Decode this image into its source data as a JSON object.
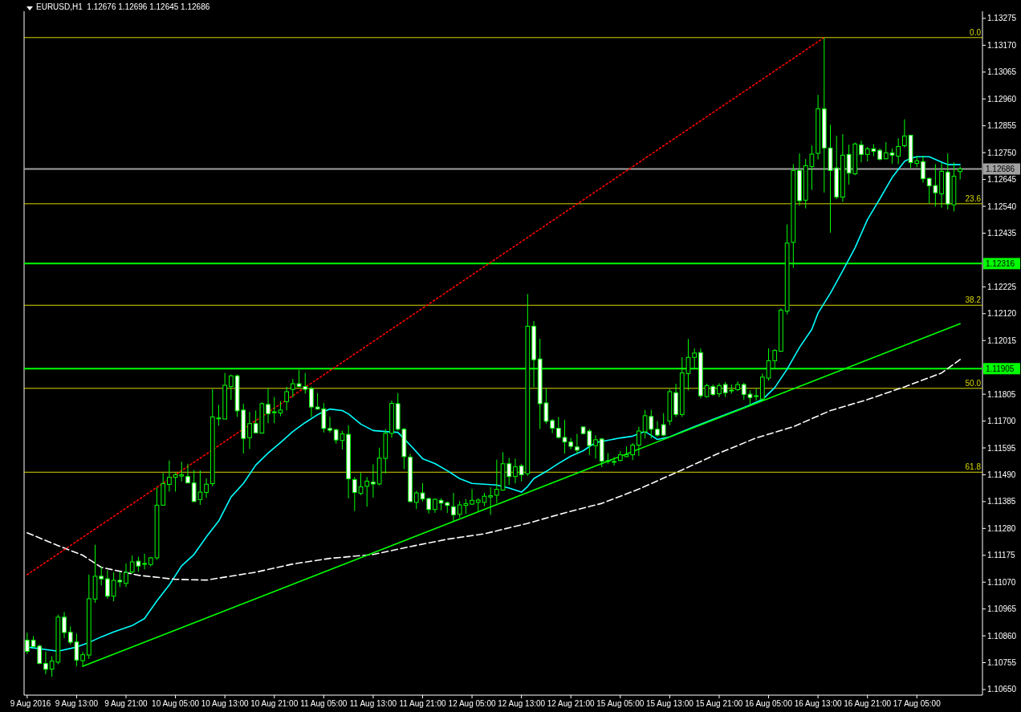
{
  "chart_data": {
    "type": "candlestick",
    "title": "EURUSD,H1  1.12676 1.12696 1.12645 1.12686",
    "color": "#00ff00",
    "categories": [
      "9 Aug 2016",
      null,
      null,
      null,
      null,
      null,
      null,
      null,
      "9 Aug 13:00",
      null,
      null,
      null,
      null,
      null,
      null,
      null,
      "9 Aug 21:00",
      null,
      null,
      null,
      null,
      null,
      null,
      null,
      "10 Aug 05:00",
      null,
      null,
      null,
      null,
      null,
      null,
      null,
      "10 Aug 13:00",
      null,
      null,
      null,
      null,
      null,
      null,
      null,
      "10 Aug 21:00",
      null,
      null,
      null,
      null,
      null,
      null,
      null,
      "11 Aug 05:00",
      null,
      null,
      null,
      null,
      null,
      null,
      null,
      "11 Aug 13:00",
      null,
      null,
      null,
      null,
      null,
      null,
      null,
      "11 Aug 21:00",
      null,
      null,
      null,
      null,
      null,
      null,
      null,
      "12 Aug 05:00",
      null,
      null,
      null,
      null,
      null,
      null,
      null,
      "12 Aug 13:00",
      null,
      null,
      null,
      null,
      null,
      null,
      null,
      "12 Aug 21:00",
      null,
      null,
      null,
      null,
      null,
      null,
      null,
      "15 Aug 05:00",
      null,
      null,
      null,
      null,
      null,
      null,
      null,
      "15 Aug 13:00",
      null,
      null,
      null,
      null,
      null,
      null,
      null,
      "15 Aug 21:00",
      null,
      null,
      null,
      null,
      null,
      null,
      null,
      "16 Aug 05:00",
      null,
      null,
      null,
      null,
      null,
      null,
      null,
      "16 Aug 13:00",
      null,
      null,
      null,
      null,
      null,
      null,
      null,
      "16 Aug 21:00",
      null,
      null,
      null,
      null,
      null,
      null,
      null,
      "17 Aug 05:00",
      null,
      null,
      null,
      null,
      null,
      null,
      null
    ],
    "ohlc": [
      [
        1.10843,
        1.10872,
        1.10789,
        1.10799
      ],
      [
        1.10843,
        1.10859,
        1.10815,
        1.10818
      ],
      [
        1.1082,
        1.10825,
        1.10749,
        1.10752
      ],
      [
        1.10752,
        1.10799,
        1.1071,
        1.10729
      ],
      [
        1.1073,
        1.1078,
        1.107,
        1.10761
      ],
      [
        1.10757,
        1.10943,
        1.10749,
        1.10933
      ],
      [
        1.10933,
        1.10953,
        1.10851,
        1.10873
      ],
      [
        1.10874,
        1.10897,
        1.10825,
        1.10835
      ],
      [
        1.10836,
        1.10869,
        1.10742,
        1.10765
      ],
      [
        1.10763,
        1.10797,
        1.10739,
        1.10786
      ],
      [
        1.10785,
        1.11099,
        1.1077,
        1.11005
      ],
      [
        1.11004,
        1.11216,
        1.10989,
        1.11093
      ],
      [
        1.11093,
        1.1113,
        1.11057,
        1.11083
      ],
      [
        1.11083,
        1.11117,
        1.11005,
        1.11015
      ],
      [
        1.11015,
        1.11109,
        1.10995,
        1.11077
      ],
      [
        1.11077,
        1.11111,
        1.11051,
        1.11071
      ],
      [
        1.11065,
        1.11143,
        1.11051,
        1.11108
      ],
      [
        1.1111,
        1.11174,
        1.11103,
        1.11149
      ],
      [
        1.11152,
        1.11169,
        1.11111,
        1.11133
      ],
      [
        1.1114,
        1.11181,
        1.1112,
        1.11143
      ],
      [
        1.11139,
        1.11169,
        1.11132,
        1.11165
      ],
      [
        1.11165,
        1.1144,
        1.11158,
        1.11371
      ],
      [
        1.11371,
        1.11497,
        1.1137,
        1.11455
      ],
      [
        1.11452,
        1.11546,
        1.11424,
        1.1148
      ],
      [
        1.1148,
        1.11497,
        1.11424,
        1.1149
      ],
      [
        1.11485,
        1.11541,
        1.11464,
        1.1149
      ],
      [
        1.11483,
        1.11533,
        1.11457,
        1.11458
      ],
      [
        1.11458,
        1.11509,
        1.11385,
        1.11385
      ],
      [
        1.11393,
        1.11507,
        1.11372,
        1.11422
      ],
      [
        1.11421,
        1.11476,
        1.114,
        1.11453
      ],
      [
        1.11455,
        1.11825,
        1.11445,
        1.11716
      ],
      [
        1.1171,
        1.11763,
        1.11682,
        1.11712
      ],
      [
        1.11708,
        1.11888,
        1.11707,
        1.1184
      ],
      [
        1.11835,
        1.11882,
        1.11783,
        1.11877
      ],
      [
        1.11877,
        1.11882,
        1.11716,
        1.1174
      ],
      [
        1.11743,
        1.11768,
        1.11573,
        1.11632
      ],
      [
        1.11635,
        1.11736,
        1.11591,
        1.1169
      ],
      [
        1.1169,
        1.11741,
        1.11651,
        1.11654
      ],
      [
        1.11653,
        1.11773,
        1.11651,
        1.11768
      ],
      [
        1.11765,
        1.11827,
        1.11692,
        1.11729
      ],
      [
        1.11736,
        1.11794,
        1.11692,
        1.11734
      ],
      [
        1.11732,
        1.11778,
        1.11719,
        1.11743
      ],
      [
        1.11776,
        1.11834,
        1.11742,
        1.11815
      ],
      [
        1.11824,
        1.11865,
        1.11792,
        1.11846
      ],
      [
        1.11846,
        1.119,
        1.11832,
        1.11835
      ],
      [
        1.11835,
        1.11888,
        1.11807,
        1.11824
      ],
      [
        1.11827,
        1.11835,
        1.11716,
        1.11755
      ],
      [
        1.11755,
        1.11809,
        1.11744,
        1.11747
      ],
      [
        1.11748,
        1.1177,
        1.11655,
        1.11671
      ],
      [
        1.11671,
        1.11716,
        1.11654,
        1.11664
      ],
      [
        1.11666,
        1.11671,
        1.11612,
        1.11626
      ],
      [
        1.11624,
        1.11662,
        1.11589,
        1.1165
      ],
      [
        1.11648,
        1.11684,
        1.11398,
        1.11474
      ],
      [
        1.11471,
        1.11481,
        1.11348,
        1.11421
      ],
      [
        1.11417,
        1.11497,
        1.1141,
        1.11443
      ],
      [
        1.11445,
        1.11481,
        1.11365,
        1.11465
      ],
      [
        1.11461,
        1.11531,
        1.11401,
        1.11454
      ],
      [
        1.11454,
        1.11596,
        1.11448,
        1.11555
      ],
      [
        1.11554,
        1.11669,
        1.11495,
        1.11652
      ],
      [
        1.11652,
        1.1178,
        1.11635,
        1.11769
      ],
      [
        1.11768,
        1.11809,
        1.11663,
        1.11668
      ],
      [
        1.11668,
        1.11673,
        1.11512,
        1.11561
      ],
      [
        1.11559,
        1.11572,
        1.11382,
        1.11385
      ],
      [
        1.11382,
        1.11427,
        1.11356,
        1.11419
      ],
      [
        1.11419,
        1.11457,
        1.11385,
        1.11395
      ],
      [
        1.11397,
        1.114,
        1.11338,
        1.11354
      ],
      [
        1.11354,
        1.11398,
        1.11341,
        1.11394
      ],
      [
        1.1139,
        1.11398,
        1.11351,
        1.11379
      ],
      [
        1.11381,
        1.11385,
        1.11341,
        1.1137
      ],
      [
        1.11365,
        1.11419,
        1.11306,
        1.11333
      ],
      [
        1.11335,
        1.11387,
        1.11322,
        1.11372
      ],
      [
        1.1137,
        1.11395,
        1.11337,
        1.11377
      ],
      [
        1.11375,
        1.11434,
        1.11372,
        1.1139
      ],
      [
        1.11382,
        1.11398,
        1.11346,
        1.11391
      ],
      [
        1.11382,
        1.11419,
        1.11367,
        1.11406
      ],
      [
        1.11403,
        1.11441,
        1.11333,
        1.11408
      ],
      [
        1.1141,
        1.11549,
        1.11379,
        1.11433
      ],
      [
        1.1143,
        1.11578,
        1.11429,
        1.11533
      ],
      [
        1.11533,
        1.11556,
        1.1145,
        1.11483
      ],
      [
        1.11483,
        1.11553,
        1.11457,
        1.11521
      ],
      [
        1.11525,
        1.11533,
        1.11464,
        1.1149
      ],
      [
        1.11494,
        1.12197,
        1.11486,
        1.12071
      ],
      [
        1.12071,
        1.12091,
        1.11832,
        1.1194
      ],
      [
        1.11943,
        1.12022,
        1.11669,
        1.11768
      ],
      [
        1.11771,
        1.11828,
        1.1169,
        1.11699
      ],
      [
        1.11702,
        1.11708,
        1.11653,
        1.11672
      ],
      [
        1.11672,
        1.11716,
        1.11632,
        1.11636
      ],
      [
        1.11636,
        1.11705,
        1.11573,
        1.11618
      ],
      [
        1.11618,
        1.11634,
        1.11589,
        1.11601
      ],
      [
        1.11599,
        1.1165,
        1.11573,
        1.11586
      ],
      [
        1.11677,
        1.11678,
        1.11648,
        1.11651
      ],
      [
        1.11661,
        1.11669,
        1.11567,
        1.11604
      ],
      [
        1.11604,
        1.11645,
        1.11553,
        1.11627
      ],
      [
        1.1163,
        1.11634,
        1.1152,
        1.11543
      ],
      [
        1.11543,
        1.11575,
        1.11533,
        1.11545
      ],
      [
        1.11539,
        1.11559,
        1.11526,
        1.11542
      ],
      [
        1.11546,
        1.11582,
        1.11542,
        1.11568
      ],
      [
        1.11561,
        1.11601,
        1.11559,
        1.11568
      ],
      [
        1.11568,
        1.11614,
        1.11547,
        1.11606
      ],
      [
        1.11606,
        1.11678,
        1.11563,
        1.11661
      ],
      [
        1.11658,
        1.11744,
        1.11632,
        1.11721
      ],
      [
        1.11718,
        1.11744,
        1.11632,
        1.11668
      ],
      [
        1.11668,
        1.117,
        1.11638,
        1.11645
      ],
      [
        1.11686,
        1.11731,
        1.1164,
        1.11645
      ],
      [
        1.117,
        1.11825,
        1.11684,
        1.11815
      ],
      [
        1.11811,
        1.11846,
        1.11716,
        1.11726
      ],
      [
        1.11726,
        1.1195,
        1.11716,
        1.11888
      ],
      [
        1.11886,
        1.12021,
        1.1182,
        1.11949
      ],
      [
        1.11949,
        1.11984,
        1.11903,
        1.11966
      ],
      [
        1.11968,
        1.11984,
        1.11789,
        1.11799
      ],
      [
        1.11796,
        1.11846,
        1.11791,
        1.11839
      ],
      [
        1.11835,
        1.11843,
        1.11799,
        1.11804
      ],
      [
        1.11807,
        1.11848,
        1.11794,
        1.11839
      ],
      [
        1.11843,
        1.11853,
        1.11794,
        1.11811
      ],
      [
        1.11821,
        1.11843,
        1.11807,
        1.11819
      ],
      [
        1.11823,
        1.11855,
        1.11818,
        1.11843
      ],
      [
        1.11843,
        1.11849,
        1.11783,
        1.11804
      ],
      [
        1.11805,
        1.1182,
        1.11762,
        1.11792
      ],
      [
        1.11797,
        1.11827,
        1.1178,
        1.11799
      ],
      [
        1.11786,
        1.11886,
        1.1178,
        1.11872
      ],
      [
        1.11868,
        1.11984,
        1.11858,
        1.11936
      ],
      [
        1.11936,
        1.11981,
        1.11903,
        1.11976
      ],
      [
        1.11973,
        1.12141,
        1.11971,
        1.12134
      ],
      [
        1.1213,
        1.12469,
        1.12117,
        1.12396
      ],
      [
        1.12399,
        1.12705,
        1.12299,
        1.1268
      ],
      [
        1.1268,
        1.12747,
        1.12542,
        1.12562
      ],
      [
        1.12564,
        1.12725,
        1.12532,
        1.12699
      ],
      [
        1.12696,
        1.12778,
        1.12604,
        1.12744
      ],
      [
        1.12747,
        1.12976,
        1.12723,
        1.12921
      ],
      [
        1.12921,
        1.132,
        1.12594,
        1.12768
      ],
      [
        1.12768,
        1.12859,
        1.12437,
        1.1268
      ],
      [
        1.1269,
        1.12816,
        1.12568,
        1.12576
      ],
      [
        1.12576,
        1.12822,
        1.12557,
        1.1274
      ],
      [
        1.12743,
        1.12781,
        1.12625,
        1.1267
      ],
      [
        1.12667,
        1.12789,
        1.12662,
        1.12784
      ],
      [
        1.1278,
        1.12797,
        1.12712,
        1.12743
      ],
      [
        1.12743,
        1.12772,
        1.12716,
        1.12765
      ],
      [
        1.12765,
        1.12783,
        1.12736,
        1.12755
      ],
      [
        1.12759,
        1.12766,
        1.12719,
        1.12724
      ],
      [
        1.12726,
        1.12791,
        1.12724,
        1.12749
      ],
      [
        1.12749,
        1.12766,
        1.12707,
        1.1274
      ],
      [
        1.12736,
        1.12806,
        1.12705,
        1.12774
      ],
      [
        1.12777,
        1.1288,
        1.1277,
        1.12815
      ],
      [
        1.12818,
        1.1282,
        1.1269,
        1.12711
      ],
      [
        1.12708,
        1.12738,
        1.12693,
        1.12718
      ],
      [
        1.12715,
        1.12738,
        1.12632,
        1.12648
      ],
      [
        1.12649,
        1.12653,
        1.12552,
        1.1262
      ],
      [
        1.12621,
        1.12705,
        1.12539,
        1.12593
      ],
      [
        1.12589,
        1.1271,
        1.12535,
        1.12677
      ],
      [
        1.12674,
        1.12747,
        1.12528,
        1.12549
      ],
      [
        1.12546,
        1.12712,
        1.1252,
        1.12658
      ],
      [
        1.12676,
        1.12696,
        1.12645,
        1.12686
      ]
    ],
    "series": [
      {
        "type": "line",
        "color": "#00ffff",
        "line_style": "solid",
        "values": [
          1.10816,
          null,
          null,
          null,
          null,
          1.108,
          null,
          null,
          1.10816,
          null,
          1.10834,
          null,
          1.10856,
          null,
          1.10875,
          null,
          null,
          1.109,
          null,
          1.10928,
          null,
          1.10997,
          null,
          1.11059,
          null,
          1.11134,
          null,
          1.11178,
          null,
          1.11247,
          null,
          1.11309,
          null,
          1.11403,
          null,
          1.11456,
          null,
          1.11528,
          null,
          1.11575,
          null,
          1.11616,
          null,
          1.11659,
          null,
          1.11694,
          null,
          1.11725,
          null,
          1.11747,
          null,
          1.11741,
          1.11728,
          null,
          1.11688,
          null,
          1.11663,
          null,
          1.11659,
          null,
          1.11656,
          null,
          1.11606,
          null,
          1.11553,
          null,
          1.11534,
          null,
          1.11506,
          null,
          1.11475,
          null,
          1.11456,
          null,
          1.11453,
          null,
          1.1145,
          null,
          1.11438,
          null,
          1.11422,
          1.11444,
          1.11475,
          null,
          1.11503,
          null,
          1.11534,
          null,
          1.11563,
          null,
          1.11584,
          null,
          1.11616,
          null,
          1.11625,
          null,
          1.11634,
          null,
          1.11641,
          null,
          1.11659,
          1.11644,
          1.11628,
          null,
          1.11638,
          null,
          1.11659,
          null,
          1.11678,
          null,
          1.11697,
          null,
          1.11716,
          null,
          null,
          null,
          1.11753,
          null,
          null,
          1.11784,
          null,
          1.11831,
          null,
          1.11903,
          null,
          1.11988,
          null,
          1.12059,
          1.12122,
          null,
          1.122,
          null,
          1.12288,
          null,
          1.12378,
          null,
          1.12488,
          null,
          1.12569,
          null,
          1.12653,
          null,
          1.12716,
          1.12728,
          1.12734,
          null,
          1.12734,
          null,
          1.12713,
          1.12703,
          null,
          1.12703
        ]
      },
      {
        "type": "line",
        "color": "#ffffff",
        "line_style": "dashed",
        "values": [
          1.11263,
          null,
          null,
          null,
          null,
          1.11213,
          null,
          null,
          null,
          1.11175,
          null,
          null,
          1.11128,
          null,
          null,
          null,
          null,
          null,
          1.11097,
          null,
          null,
          null,
          null,
          null,
          1.11081,
          null,
          null,
          null,
          null,
          1.11078,
          null,
          null,
          null,
          null,
          null,
          null,
          null,
          1.11109,
          null,
          null,
          null,
          null,
          null,
          1.11141,
          null,
          null,
          null,
          null,
          null,
          1.11163,
          null,
          null,
          null,
          null,
          null,
          null,
          1.11178,
          null,
          null,
          null,
          null,
          null,
          1.11209,
          null,
          null,
          null,
          null,
          null,
          1.11238,
          null,
          null,
          null,
          null,
          null,
          1.11259,
          null,
          null,
          null,
          null,
          null,
          null,
          1.113,
          null,
          null,
          null,
          null,
          null,
          1.11341,
          null,
          null,
          null,
          null,
          null,
          1.11378,
          null,
          null,
          null,
          null,
          null,
          1.11434,
          null,
          null,
          null,
          null,
          null,
          null,
          1.11509,
          null,
          null,
          null,
          null,
          null,
          1.11575,
          null,
          null,
          null,
          null,
          null,
          1.11634,
          null,
          null,
          null,
          null,
          null,
          1.11678,
          null,
          null,
          null,
          null,
          null,
          1.11741,
          null,
          null,
          null,
          null,
          null,
          1.11784,
          null,
          null,
          null,
          null,
          null,
          1.11834,
          null,
          null,
          null,
          null,
          null,
          1.11888,
          null,
          null,
          1.11941
        ]
      },
      {
        "type": "line",
        "color": "#00ff00",
        "line_style": "solid",
        "values": [
          null,
          null,
          null,
          null,
          null,
          null,
          null,
          null,
          null,
          1.10741,
          null,
          null,
          null,
          null,
          null,
          null,
          null,
          null,
          null,
          null,
          null,
          null,
          null,
          null,
          null,
          null,
          null,
          null,
          null,
          null,
          null,
          null,
          null,
          null,
          null,
          null,
          null,
          null,
          null,
          null,
          null,
          null,
          null,
          null,
          null,
          null,
          null,
          null,
          null,
          null,
          null,
          null,
          null,
          null,
          null,
          null,
          null,
          null,
          null,
          null,
          null,
          null,
          null,
          null,
          null,
          null,
          null,
          null,
          null,
          null,
          null,
          null,
          null,
          null,
          null,
          null,
          null,
          null,
          null,
          null,
          null,
          null,
          null,
          null,
          null,
          null,
          null,
          null,
          null,
          null,
          null,
          null,
          null,
          null,
          null,
          null,
          null,
          null,
          null,
          null,
          null,
          null,
          null,
          null,
          null,
          null,
          null,
          null,
          null,
          null,
          null,
          null,
          null,
          null,
          null,
          null,
          null,
          null,
          null,
          null,
          null,
          null,
          null,
          null,
          null,
          null,
          null,
          null,
          null,
          null,
          null,
          null,
          null,
          null,
          null,
          null,
          null,
          null,
          null,
          null,
          null,
          null,
          null,
          null,
          null,
          null,
          null,
          null,
          null,
          null,
          null,
          1.12081
        ]
      },
      {
        "type": "line",
        "color": "#ff0000",
        "line_style": "dotted",
        "values": [
          1.11099,
          null,
          null,
          null,
          null,
          null,
          null,
          null,
          null,
          null,
          null,
          null,
          null,
          null,
          null,
          null,
          null,
          null,
          null,
          null,
          null,
          null,
          null,
          null,
          null,
          null,
          null,
          null,
          null,
          null,
          null,
          null,
          null,
          null,
          null,
          null,
          null,
          null,
          null,
          null,
          null,
          null,
          null,
          null,
          null,
          null,
          null,
          null,
          null,
          null,
          null,
          null,
          null,
          null,
          null,
          null,
          null,
          null,
          null,
          null,
          null,
          null,
          null,
          null,
          null,
          null,
          null,
          null,
          null,
          null,
          null,
          null,
          null,
          null,
          null,
          null,
          null,
          null,
          null,
          null,
          null,
          null,
          null,
          null,
          null,
          null,
          null,
          null,
          null,
          null,
          null,
          null,
          null,
          null,
          null,
          null,
          null,
          null,
          null,
          null,
          null,
          null,
          null,
          null,
          null,
          null,
          null,
          null,
          null,
          null,
          null,
          null,
          null,
          null,
          null,
          null,
          null,
          null,
          null,
          null,
          null,
          null,
          null,
          null,
          null,
          null,
          null,
          null,
          null,
          1.132,
          null,
          null,
          null,
          null,
          null,
          null,
          null,
          null,
          null,
          null,
          null,
          null,
          null,
          null,
          null,
          null,
          null,
          null,
          null,
          null,
          null,
          null
        ]
      }
    ],
    "ref_lines": [
      {
        "axis": "y",
        "value": 1.132,
        "color": "#d8d800"
      },
      {
        "axis": "y",
        "value": 1.1255,
        "color": "#d8d800"
      },
      {
        "axis": "y",
        "value": 1.12153,
        "color": "#d8d800"
      },
      {
        "axis": "y",
        "value": 1.11828,
        "color": "#d8d800"
      },
      {
        "axis": "y",
        "value": 1.115,
        "color": "#d8d800"
      },
      {
        "axis": "y",
        "value": 1.12316,
        "label": "1.12316",
        "color": "#00ff00"
      },
      {
        "axis": "y",
        "value": 1.11905,
        "label": "1.11905",
        "color": "#00ff00"
      },
      {
        "axis": "y",
        "value": 1.12686,
        "label": "1.12686",
        "color": "#a0a0a0"
      }
    ],
    "annotations": [
      {
        "text": "0.0",
        "y": 1.132
      },
      {
        "text": "23.6",
        "y": 1.1255
      },
      {
        "text": "38.2",
        "y": 1.12153
      },
      {
        "text": "50.0",
        "y": 1.11828
      },
      {
        "text": "61.8",
        "y": 1.115
      }
    ],
    "ylim": [
      1.10628,
      1.13303
    ],
    "yticks": [
      {
        "value": 1.1065,
        "label": "1.10650"
      },
      {
        "value": 1.10755,
        "label": "1.10755"
      },
      {
        "value": 1.1086,
        "label": "1.10860"
      },
      {
        "value": 1.10965,
        "label": "1.10965"
      },
      {
        "value": 1.1107,
        "label": "1.11070"
      },
      {
        "value": 1.11175,
        "label": "1.11175"
      },
      {
        "value": 1.1128,
        "label": "1.11280"
      },
      {
        "value": 1.11385,
        "label": "1.11385"
      },
      {
        "value": 1.1149,
        "label": "1.11490"
      },
      {
        "value": 1.11595,
        "label": "1.11595"
      },
      {
        "value": 1.117,
        "label": "1.11700"
      },
      {
        "value": 1.11805,
        "label": "1.11805"
      },
      {
        "value": 1.12015,
        "label": "1.12015"
      },
      {
        "value": 1.1212,
        "label": "1.12120"
      },
      {
        "value": 1.12225,
        "label": "1.12225"
      },
      {
        "value": 1.12435,
        "label": "1.12435"
      },
      {
        "value": 1.1254,
        "label": "1.12540"
      },
      {
        "value": 1.12645,
        "label": "1.12645"
      },
      {
        "value": 1.1275,
        "label": "1.12750"
      },
      {
        "value": 1.12855,
        "label": "1.12855"
      },
      {
        "value": 1.1296,
        "label": "1.12960"
      },
      {
        "value": 1.13065,
        "label": "1.13065"
      },
      {
        "value": 1.1317,
        "label": "1.13170"
      },
      {
        "value": 1.13275,
        "label": "1.13275"
      }
    ]
  }
}
